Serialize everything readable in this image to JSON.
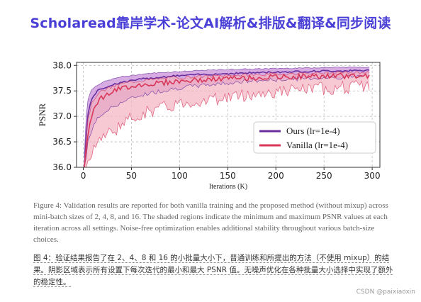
{
  "banner": {
    "text": "Scholaread靠岸学术-论文AI解析&排版&翻译&同步阅读"
  },
  "chart_data": {
    "type": "area",
    "title": "",
    "xlabel": "Iterations (K)",
    "ylabel": "PSNR",
    "xlim": [
      -7,
      308
    ],
    "ylim": [
      36.0,
      38.06
    ],
    "xticks": [
      0,
      50,
      100,
      150,
      200,
      250,
      300
    ],
    "yticks": [
      36.0,
      36.5,
      37.0,
      37.5,
      38.0
    ],
    "ytick_labels": [
      "36.0",
      "36.5",
      "37.0",
      "37.5",
      "38.0"
    ],
    "grid": true,
    "grid_style": "dashed",
    "legend_position": "center-right",
    "series": [
      {
        "name": "Ours (lr=1e-4)",
        "color": "#6a2e9e",
        "fill_color": "#c890d8",
        "x": [
          1,
          3,
          5,
          8,
          10,
          15,
          20,
          30,
          40,
          50,
          60,
          80,
          100,
          120,
          150,
          200,
          250,
          297
        ],
        "mean": [
          35.8,
          36.6,
          37.05,
          37.3,
          37.4,
          37.5,
          37.55,
          37.62,
          37.67,
          37.7,
          37.73,
          37.77,
          37.8,
          37.82,
          37.84,
          37.87,
          37.89,
          37.9
        ],
        "upper": [
          36.2,
          37.0,
          37.35,
          37.5,
          37.55,
          37.62,
          37.67,
          37.73,
          37.78,
          37.8,
          37.83,
          37.86,
          37.88,
          37.9,
          37.92,
          37.94,
          37.96,
          37.97
        ],
        "lower": [
          35.8,
          36.2,
          36.5,
          36.7,
          36.8,
          36.95,
          37.05,
          37.18,
          37.28,
          37.35,
          37.42,
          37.5,
          37.56,
          37.6,
          37.66,
          37.72,
          37.76,
          37.79
        ]
      },
      {
        "name": "Vanilla (lr=1e-4)",
        "color": "#d8375a",
        "fill_color": "#f2b2c0",
        "x": [
          1,
          3,
          5,
          8,
          10,
          15,
          20,
          30,
          40,
          50,
          60,
          80,
          100,
          120,
          150,
          200,
          250,
          297
        ],
        "mean": [
          35.8,
          36.3,
          36.7,
          37.0,
          37.1,
          37.3,
          37.38,
          37.48,
          37.55,
          37.6,
          37.62,
          37.66,
          37.69,
          37.71,
          37.74,
          37.77,
          37.79,
          37.8
        ],
        "upper": [
          36.0,
          36.6,
          36.95,
          37.2,
          37.3,
          37.45,
          37.5,
          37.58,
          37.64,
          37.68,
          37.7,
          37.74,
          37.76,
          37.78,
          37.8,
          37.83,
          37.85,
          37.86
        ],
        "lower": [
          35.8,
          35.9,
          36.1,
          36.3,
          36.4,
          36.5,
          36.6,
          36.7,
          36.85,
          36.95,
          37.05,
          37.15,
          37.25,
          37.3,
          37.38,
          37.48,
          37.55,
          37.6
        ],
        "noise_amplitude": 0.12
      }
    ]
  },
  "caption_en": "Figure 4: Validation results are reported for both vanilla training and the proposed method (without mixup) across mini-batch sizes of 2, 4, 8, and 16. The shaded regions indicate the minimum and maximum PSNR values at each iteration across all settings. Noise-free optimization enables additional stability throughout various batch-size choices.",
  "caption_zh": "图 4：验证结果报告了在 2、4、8 和 16 的小批量大小下，普通训练和所提出的方法（不使用 mixup）的结果。阴影区域表示所有设置下每次迭代的最小和最大 PSNR 值。无噪声优化在各种批量大小选择中实现了额外的稳定性。",
  "watermark": "CSDN @paixiaoxin"
}
